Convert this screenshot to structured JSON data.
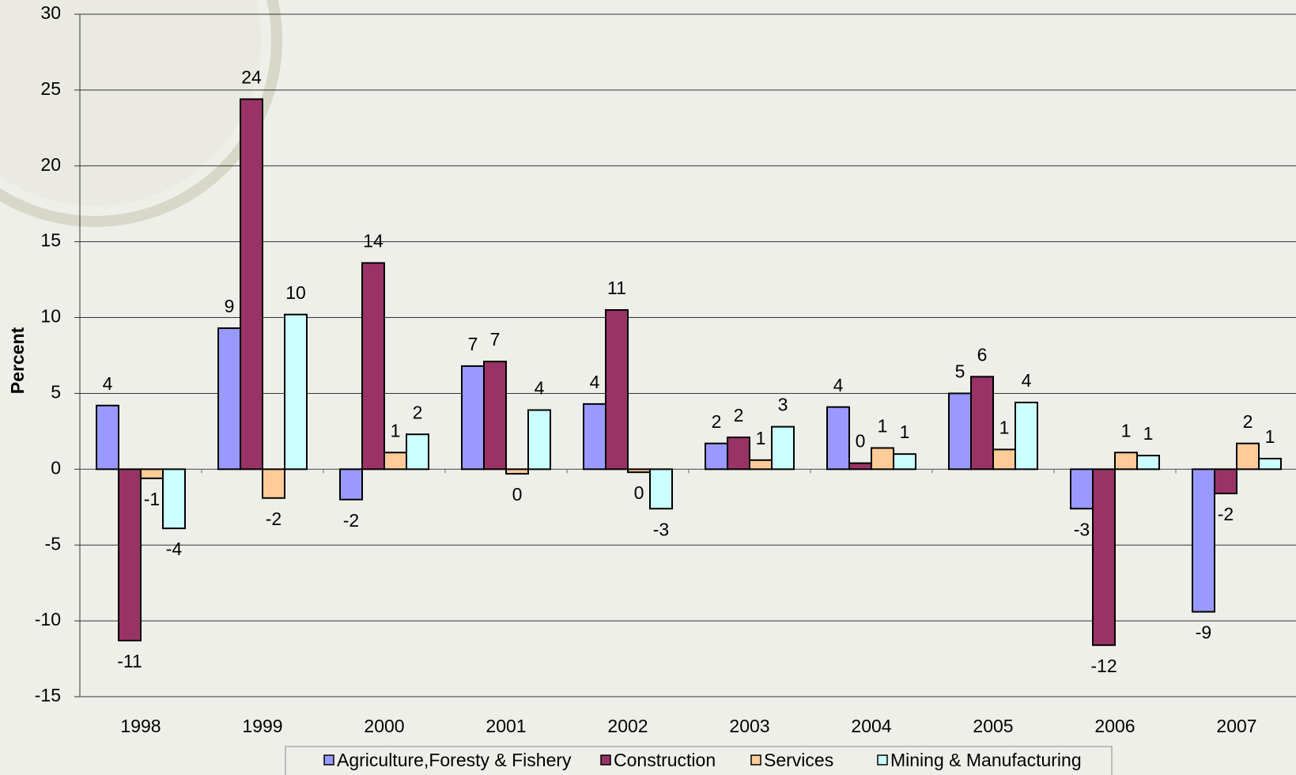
{
  "chart_data": {
    "type": "bar",
    "y_label": "Percent",
    "categories": [
      "1998",
      "1999",
      "2000",
      "2001",
      "2002",
      "2003",
      "2004",
      "2005",
      "2006",
      "2007"
    ],
    "series": [
      {
        "name": "Agriculture,Foresty & Fishery",
        "color": "#9999ff",
        "values": [
          4.2,
          9.3,
          -2.0,
          6.8,
          4.3,
          1.7,
          4.1,
          5.0,
          -2.6,
          -9.4
        ],
        "value_labels": [
          "4",
          "9",
          "-2",
          "7",
          "4",
          "2",
          "4",
          "5",
          "-3",
          "-9"
        ]
      },
      {
        "name": "Construction",
        "color": "#993366",
        "values": [
          -11.3,
          24.4,
          13.6,
          7.1,
          10.5,
          2.1,
          0.4,
          6.1,
          -11.6,
          -1.6
        ],
        "value_labels": [
          "-11",
          "24",
          "14",
          "7",
          "11",
          "2",
          "0",
          "6",
          "-12",
          "-2"
        ]
      },
      {
        "name": "Services",
        "color": "#ffcc99",
        "values": [
          -0.6,
          -1.9,
          1.1,
          -0.3,
          -0.2,
          0.6,
          1.4,
          1.3,
          1.1,
          1.7
        ],
        "value_labels": [
          "-1",
          "-2",
          "1",
          "0",
          "0",
          "1",
          "1",
          "1",
          "1",
          "2"
        ]
      },
      {
        "name": "Mining & Manufacturing",
        "color": "#ccffff",
        "values": [
          -3.9,
          10.2,
          2.3,
          3.9,
          -2.6,
          2.8,
          1.0,
          4.4,
          0.9,
          0.7
        ],
        "value_labels": [
          "-4",
          "10",
          "2",
          "4",
          "-3",
          "3",
          "1",
          "4",
          "1",
          "1"
        ]
      }
    ],
    "ylim": [
      -15,
      30
    ],
    "yticks": [
      -15,
      -10,
      -5,
      0,
      5,
      10,
      15,
      20,
      25,
      30
    ],
    "grid": true
  }
}
